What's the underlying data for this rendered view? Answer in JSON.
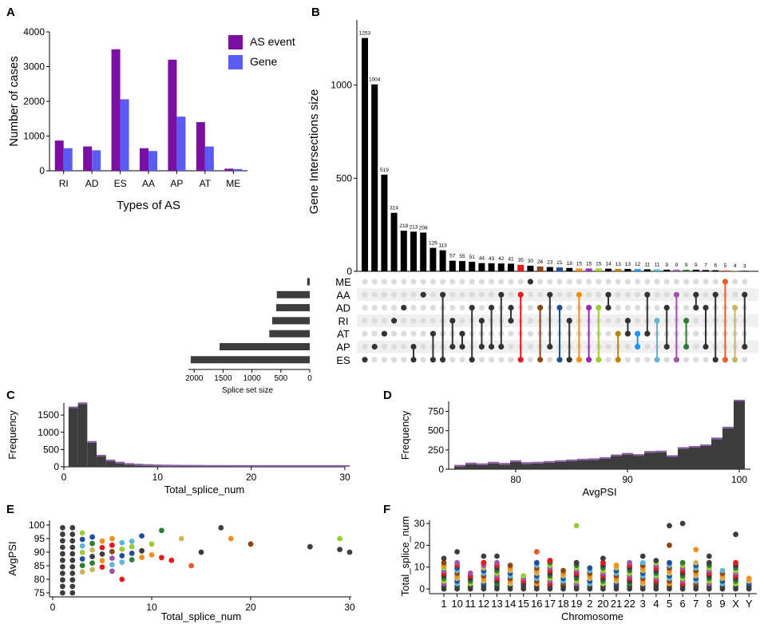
{
  "panel_letters": [
    "A",
    "B",
    "C",
    "D",
    "E",
    "F"
  ],
  "colors": {
    "as_event": "#7b0ea3",
    "gene": "#5a5cf5",
    "bar_dark": "#3d3d3d",
    "matrix_dot_off": "#dcdcdc",
    "matrix_stripe": "#f0f0f0"
  },
  "chart_data": [
    {
      "id": "A",
      "type": "bar",
      "title": "",
      "xlabel": "Types of AS",
      "ylabel": "Number of cases",
      "ylim": [
        0,
        4000
      ],
      "yticks": [
        0,
        1000,
        2000,
        3000,
        4000
      ],
      "categories": [
        "RI",
        "AD",
        "ES",
        "AA",
        "AP",
        "AT",
        "ME"
      ],
      "series": [
        {
          "name": "AS event",
          "color": "#7b0ea3",
          "values": [
            870,
            700,
            3500,
            650,
            3200,
            1400,
            60
          ]
        },
        {
          "name": "Gene",
          "color": "#5a5cf5",
          "values": [
            650,
            590,
            2060,
            570,
            1560,
            700,
            50
          ]
        }
      ],
      "legend": "top-right"
    },
    {
      "id": "B",
      "type": "bar",
      "title": "",
      "ylabel": "Gene Intersections size",
      "ylim": [
        0,
        1350
      ],
      "yticks": [
        0,
        500,
        1000
      ],
      "values": [
        1253,
        1004,
        519,
        314,
        218,
        213,
        208,
        126,
        113,
        57,
        55,
        51,
        44,
        43,
        42,
        41,
        35,
        30,
        26,
        23,
        21,
        18,
        15,
        15,
        15,
        14,
        13,
        13,
        12,
        11,
        11,
        9,
        9,
        9,
        9,
        7,
        6,
        5,
        4,
        3
      ],
      "value_labels": [
        "1253",
        "1004",
        "519",
        "314",
        "218",
        "213",
        "208",
        "126",
        "113",
        "57",
        "55",
        "51",
        "44",
        "43",
        "42",
        "41",
        "35",
        "30",
        "26",
        "23",
        "21",
        "18",
        "15",
        "15",
        "15",
        "14",
        "13",
        "13",
        "12",
        "11",
        "11",
        "9",
        "9",
        "9",
        "9",
        "7",
        "6",
        "5",
        "4",
        "3"
      ],
      "bar_colors": [
        "#000",
        "#000",
        "#000",
        "#000",
        "#000",
        "#000",
        "#000",
        "#000",
        "#000",
        "#000",
        "#000",
        "#000",
        "#000",
        "#000",
        "#000",
        "#000",
        "#e41a1c",
        "#000",
        "#8b4513",
        "#000",
        "#1f4e9c",
        "#000",
        "#f28e1c",
        "#9c27b0",
        "#9acd32",
        "#000",
        "#b8860b",
        "#000",
        "#1e90ff",
        "#000",
        "#5fb7d5",
        "#000",
        "#9e55a8",
        "#2e7d32",
        "#000",
        "#000",
        "#000",
        "#f05a28",
        "#c8b560",
        "#000"
      ],
      "sets": [
        "ME",
        "AA",
        "AD",
        "RI",
        "AT",
        "AP",
        "ES"
      ],
      "set_sizes": [
        45,
        570,
        580,
        650,
        700,
        1560,
        2060
      ],
      "set_size_label": "Splice set size",
      "set_size_ticks": [
        2000,
        1500,
        1000,
        500,
        0
      ],
      "memberships": [
        [
          "ES"
        ],
        [
          "AP"
        ],
        [
          "AT"
        ],
        [
          "RI"
        ],
        [
          "AD"
        ],
        [
          "AP",
          "ES"
        ],
        [
          "AA"
        ],
        [
          "AT",
          "ES"
        ],
        [
          "AA",
          "ES"
        ],
        [
          "AP",
          "RI"
        ],
        [
          "AT",
          "AP"
        ],
        [
          "AD",
          "ES"
        ],
        [
          "RI",
          "AP"
        ],
        [
          "AD",
          "AP"
        ],
        [
          "AA",
          "AP"
        ],
        [
          "AD",
          "RI"
        ],
        [
          "AA",
          "ES"
        ],
        [
          "ME"
        ],
        [
          "AD",
          "ES"
        ],
        [
          "AA",
          "AP"
        ],
        [
          "AD",
          "ES"
        ],
        [
          "RI",
          "ES"
        ],
        [
          "AA",
          "ES"
        ],
        [
          "AD",
          "ES"
        ],
        [
          "AD",
          "ES"
        ],
        [
          "AA",
          "AD"
        ],
        [
          "AT",
          "ES"
        ],
        [
          "RI",
          "AT"
        ],
        [
          "AT",
          "AP"
        ],
        [
          "AA",
          "AT"
        ],
        [
          "RI",
          "ES"
        ],
        [
          "AD",
          "AP"
        ],
        [
          "AA",
          "ES"
        ],
        [
          "RI",
          "AP"
        ],
        [
          "AA",
          "AD"
        ],
        [
          "AD",
          "AP"
        ],
        [
          "AA",
          "ES"
        ],
        [
          "ME",
          "ES"
        ],
        [
          "AD",
          "ES"
        ],
        [
          "AA",
          "AP"
        ]
      ]
    },
    {
      "id": "C",
      "type": "bar",
      "title": "",
      "xlabel": "Total_splice_num",
      "ylabel": "Frequency",
      "xlim": [
        0,
        30
      ],
      "ylim": [
        0,
        1850
      ],
      "xticks": [
        0,
        10,
        20,
        30
      ],
      "yticks": [
        0,
        500,
        1000,
        1500
      ],
      "x": [
        1,
        2,
        3,
        4,
        5,
        6,
        7,
        8,
        9,
        10,
        11,
        12,
        13,
        14,
        15,
        16,
        17,
        18,
        19,
        20,
        21,
        22,
        23,
        24,
        25,
        26,
        27,
        28,
        29,
        30
      ],
      "values": [
        1700,
        1820,
        700,
        300,
        160,
        100,
        60,
        40,
        30,
        20,
        15,
        12,
        10,
        8,
        6,
        5,
        4,
        3,
        3,
        2,
        2,
        2,
        1,
        1,
        1,
        1,
        1,
        1,
        1,
        1
      ]
    },
    {
      "id": "D",
      "type": "bar",
      "title": "",
      "xlabel": "AvgPSI",
      "ylabel": "Frequency",
      "xlim": [
        74,
        101
      ],
      "ylim": [
        0,
        880
      ],
      "xticks": [
        80,
        90,
        100
      ],
      "yticks": [
        0,
        250,
        500,
        750
      ],
      "x": [
        75,
        76,
        77,
        78,
        79,
        80,
        81,
        82,
        83,
        84,
        85,
        86,
        87,
        88,
        89,
        90,
        91,
        92,
        93,
        94,
        95,
        96,
        97,
        98,
        99,
        100
      ],
      "values": [
        35,
        65,
        55,
        75,
        60,
        95,
        70,
        75,
        85,
        95,
        105,
        115,
        120,
        135,
        170,
        190,
        175,
        215,
        220,
        160,
        265,
        280,
        300,
        390,
        530,
        880
      ]
    },
    {
      "id": "E",
      "type": "scatter",
      "title": "",
      "xlabel": "Total_splice_num",
      "ylabel": "AvgPSI",
      "xlim": [
        0,
        31
      ],
      "ylim": [
        73,
        102
      ],
      "xticks": [
        0,
        10,
        20,
        30
      ],
      "yticks": [
        75,
        80,
        85,
        90,
        95,
        100
      ],
      "points": [
        {
          "x": 17,
          "y": 99,
          "c": "#3d3d3d"
        },
        {
          "x": 18,
          "y": 95,
          "c": "#f28e1c"
        },
        {
          "x": 20,
          "y": 93,
          "c": "#8b4513"
        },
        {
          "x": 26,
          "y": 92,
          "c": "#3d3d3d"
        },
        {
          "x": 29,
          "y": 95,
          "c": "#9acd32"
        },
        {
          "x": 29,
          "y": 91,
          "c": "#3d3d3d"
        },
        {
          "x": 30,
          "y": 90,
          "c": "#3d3d3d"
        },
        {
          "x": 7,
          "y": 80,
          "c": "#e41a1c"
        },
        {
          "x": 12,
          "y": 87,
          "c": "#e41a1c"
        },
        {
          "x": 14,
          "y": 85,
          "c": "#f05a28"
        },
        {
          "x": 11,
          "y": 88,
          "c": "#e41a1c"
        },
        {
          "x": 6,
          "y": 83,
          "c": "#9e55a8"
        },
        {
          "x": 9,
          "y": 96,
          "c": "#1f4e9c"
        },
        {
          "x": 10,
          "y": 93,
          "c": "#9acd32"
        },
        {
          "x": 11,
          "y": 98,
          "c": "#2e7d32"
        },
        {
          "x": 13,
          "y": 95,
          "c": "#c8b560"
        },
        {
          "x": 15,
          "y": 90,
          "c": "#3d3d3d"
        },
        {
          "x": 8,
          "y": 94,
          "c": "#5fb7d5"
        }
      ]
    },
    {
      "id": "F",
      "type": "scatter",
      "title": "",
      "xlabel": "Chromosome",
      "ylabel": "Total_splice_num",
      "ylim": [
        0,
        32
      ],
      "yticks": [
        0,
        10,
        20,
        30
      ],
      "categories": [
        "1",
        "10",
        "11",
        "12",
        "13",
        "14",
        "15",
        "16",
        "17",
        "18",
        "19",
        "2",
        "20",
        "21",
        "22",
        "3",
        "4",
        "5",
        "6",
        "7",
        "8",
        "9",
        "X",
        "Y"
      ],
      "max_values": [
        14,
        17,
        8,
        15,
        15,
        11,
        7,
        17,
        13,
        9,
        29,
        10,
        14,
        11,
        12,
        15,
        13,
        29,
        30,
        18,
        15,
        9,
        25,
        5
      ],
      "outliers": [
        {
          "cat": "19",
          "y": 29,
          "c": "#9acd32"
        },
        {
          "cat": "5",
          "y": 29,
          "c": "#3d3d3d"
        },
        {
          "cat": "5",
          "y": 20,
          "c": "#8b4513"
        },
        {
          "cat": "6",
          "y": 30,
          "c": "#3d3d3d"
        },
        {
          "cat": "7",
          "y": 18,
          "c": "#f28e1c"
        },
        {
          "cat": "X",
          "y": 25,
          "c": "#3d3d3d"
        },
        {
          "cat": "17",
          "y": 13,
          "c": "#e41a1c"
        },
        {
          "cat": "12",
          "y": 12,
          "c": "#e41a1c"
        },
        {
          "cat": "16",
          "y": 17,
          "c": "#f05a28"
        }
      ]
    }
  ]
}
